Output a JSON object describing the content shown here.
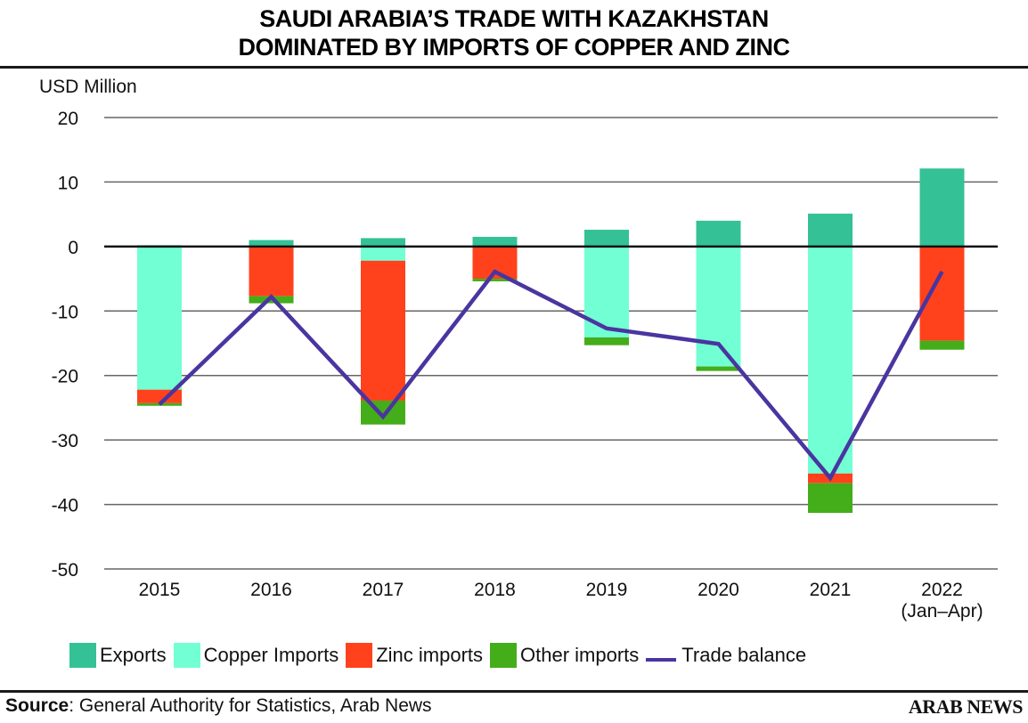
{
  "header": {
    "title_line1": "SAUDI ARABIA’S TRADE WITH KAZAKHSTAN",
    "title_line2": "DOMINATED BY IMPORTS OF COPPER AND ZINC"
  },
  "footer": {
    "source_label": "Source",
    "source_text": ": General Authority for Statistics, Arab News",
    "brand": "ARAB NEWS"
  },
  "chart_data": {
    "type": "bar",
    "stacked": true,
    "title": "SAUDI ARABIA’S TRADE WITH KAZAKHSTAN DOMINATED BY IMPORTS OF COPPER AND ZINC",
    "ylabel": "USD Million",
    "xlabel": "",
    "ylim": [
      -50,
      20
    ],
    "yticks": [
      20,
      10,
      0,
      -10,
      -20,
      -30,
      -40,
      -50
    ],
    "ytick_labels": [
      "20",
      "10",
      "0",
      "-10",
      "-20",
      "-30",
      "-40",
      "-50"
    ],
    "grid": true,
    "legend_position": "bottom",
    "categories": [
      "2015",
      "2016",
      "2017",
      "2018",
      "2019",
      "2020",
      "2021",
      "2022"
    ],
    "category_sublabels": [
      "",
      "",
      "",
      "",
      "",
      "",
      "",
      "(Jan–Apr)"
    ],
    "series": [
      {
        "name": "Exports",
        "color": "#34c196",
        "values": [
          0.2,
          1.0,
          1.3,
          1.5,
          2.6,
          4.0,
          5.1,
          12.1
        ]
      },
      {
        "name": "Copper Imports",
        "color": "#72ffd4",
        "values": [
          -22.2,
          0.0,
          -2.2,
          0.0,
          -14.1,
          -18.6,
          -35.2,
          -0.1
        ]
      },
      {
        "name": "Zinc imports",
        "color": "#ff421c",
        "values": [
          -2.1,
          -7.7,
          -21.7,
          -5.0,
          0.0,
          0.0,
          -1.5,
          -14.5
        ]
      },
      {
        "name": "Other imports",
        "color": "#44ad1a",
        "values": [
          -0.4,
          -1.1,
          -3.7,
          -0.4,
          -1.2,
          -0.7,
          -4.6,
          -1.4
        ]
      }
    ],
    "line_series": {
      "name": "Trade balance",
      "color": "#4a35a0",
      "values": [
        -24.5,
        -7.8,
        -26.4,
        -3.9,
        -12.7,
        -15.1,
        -35.9,
        -3.9
      ]
    }
  }
}
